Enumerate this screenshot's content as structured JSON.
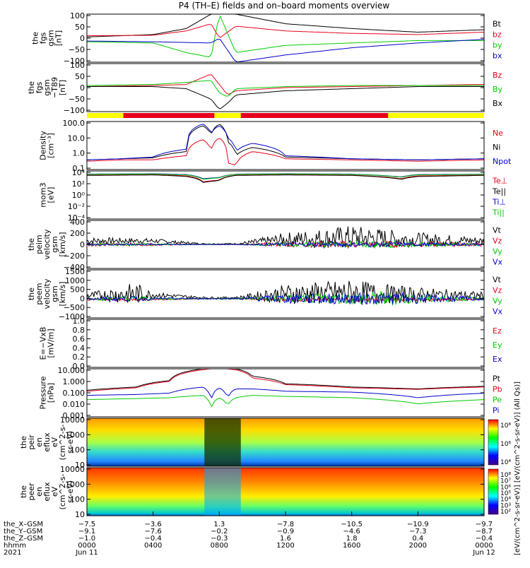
{
  "title": "P4 (TH–E) fields and on–board moments overview",
  "colors": {
    "black": "#000000",
    "red": "#e8001a",
    "green": "#00cc00",
    "blue": "#0000cc",
    "yellow": "#ffff00",
    "bar_red": "#e8001a"
  },
  "chart_data": [
    {
      "type": "line",
      "ylabel": [
        "the",
        "fgs",
        "gsm",
        "[nT]"
      ],
      "ylim": [
        -100,
        100
      ],
      "yticks": [
        "100",
        "50",
        "0",
        "−50",
        "−100"
      ],
      "legend": [
        "Bt",
        "bz",
        "by",
        "bx"
      ],
      "series": [
        {
          "name": "Bt",
          "x": [
            0,
            4,
            6,
            7.5,
            8,
            9,
            12,
            16,
            20,
            24
          ],
          "values": [
            5,
            15,
            40,
            100,
            100,
            100,
            60,
            40,
            25,
            35
          ]
        },
        {
          "name": "bz",
          "x": [
            0,
            4,
            6,
            7.5,
            8,
            9,
            12,
            16,
            20,
            24
          ],
          "values": [
            10,
            12,
            30,
            60,
            0,
            50,
            30,
            20,
            15,
            25
          ]
        },
        {
          "name": "by",
          "x": [
            0,
            4,
            6,
            7.5,
            8,
            9,
            12,
            16,
            20,
            24
          ],
          "values": [
            -15,
            -20,
            -60,
            -80,
            100,
            -60,
            -30,
            -20,
            -10,
            -10
          ]
        },
        {
          "name": "bx",
          "x": [
            0,
            4,
            6,
            7.5,
            8,
            9,
            12,
            16,
            20,
            24
          ],
          "values": [
            -12,
            -15,
            -18,
            -20,
            0,
            -100,
            -70,
            -40,
            -20,
            -5
          ]
        }
      ]
    },
    {
      "type": "line",
      "ylabel": [
        "the",
        "fgs",
        "gsm",
        "−T89",
        "[nT]"
      ],
      "ylim": [
        -120,
        110
      ],
      "yticks": [
        "100",
        "50",
        "0",
        "−50",
        "−100"
      ],
      "legend": [
        "Bz",
        "By",
        "Bx"
      ],
      "series": [
        {
          "name": "Bz",
          "x": [
            0,
            4,
            6,
            7.5,
            8,
            8.5,
            9,
            12,
            16,
            20,
            24
          ],
          "values": [
            0,
            5,
            10,
            60,
            10,
            -40,
            -20,
            -5,
            0,
            5,
            10
          ]
        },
        {
          "name": "By",
          "x": [
            0,
            4,
            6,
            7.5,
            8,
            8.5,
            9,
            12,
            16,
            20,
            24
          ],
          "values": [
            5,
            10,
            20,
            30,
            -30,
            -50,
            -10,
            0,
            5,
            5,
            5
          ]
        },
        {
          "name": "Bx",
          "x": [
            0,
            4,
            6,
            7.5,
            8,
            8.5,
            9,
            12,
            16,
            20,
            24
          ],
          "values": [
            0,
            0,
            -10,
            -60,
            -110,
            -80,
            -40,
            -20,
            -10,
            0,
            0
          ]
        }
      ]
    },
    {
      "type": "line",
      "log": true,
      "ylabel": [
        "Density",
        "[cm⁻³]"
      ],
      "ylim": [
        0.1,
        300
      ],
      "yticks": [
        "100.0",
        "10.0",
        "1.0",
        "0.1"
      ],
      "legend": [
        "Ne",
        "Ni",
        "Npot"
      ],
      "series": [
        {
          "name": "Ne",
          "x": [
            0,
            2,
            4,
            6,
            7,
            7.5,
            8,
            8.5,
            9,
            10,
            12,
            16,
            20,
            24
          ],
          "values": [
            0.4,
            0.5,
            0.5,
            1.0,
            15,
            2,
            20,
            0.3,
            0.2,
            2,
            0.6,
            0.5,
            0.4,
            0.5
          ]
        },
        {
          "name": "Ni",
          "x": [
            0,
            2,
            4,
            6,
            7,
            7.5,
            8,
            8.5,
            9,
            10,
            12,
            16,
            20,
            24
          ],
          "values": [
            0.5,
            0.6,
            0.7,
            2,
            150,
            30,
            200,
            10,
            1,
            4,
            0.8,
            0.6,
            0.5,
            0.6
          ]
        },
        {
          "name": "Npot",
          "x": [
            0,
            2,
            4,
            6,
            7,
            7.5,
            8,
            8.5,
            9,
            10,
            12,
            16,
            20,
            24
          ],
          "values": [
            0.5,
            0.6,
            0.8,
            3,
            200,
            40,
            150,
            20,
            2,
            8,
            1.0,
            0.6,
            0.5,
            0.6
          ]
        }
      ]
    },
    {
      "type": "line",
      "log": true,
      "ylabel": [
        "mom3",
        "[eV]"
      ],
      "ylim": [
        0.0001,
        10000
      ],
      "yticks": [
        "10⁴",
        "10²",
        "10⁰",
        "10⁻²",
        "10⁻⁴"
      ],
      "legend": [
        "Te⊥",
        "Te||",
        "Ti⊥",
        "Ti||"
      ],
      "series": [
        {
          "name": "Te⊥",
          "x": [
            0,
            4,
            6,
            7,
            8,
            9,
            12,
            16,
            19,
            20,
            24
          ],
          "values": [
            2000,
            2500,
            1500,
            150,
            300,
            2000,
            2500,
            2000,
            500,
            1500,
            2000
          ]
        },
        {
          "name": "Te||",
          "x": [
            0,
            4,
            6,
            7,
            8,
            9,
            12,
            16,
            19,
            20,
            24
          ],
          "values": [
            1800,
            2200,
            1200,
            120,
            250,
            1800,
            2200,
            1800,
            400,
            1200,
            1800
          ]
        },
        {
          "name": "Ti⊥",
          "x": [
            0,
            4,
            6,
            7,
            8,
            9,
            12,
            16,
            19,
            20,
            24
          ],
          "values": [
            3000,
            3500,
            2500,
            500,
            800,
            3000,
            3500,
            3000,
            1000,
            2500,
            3000
          ]
        },
        {
          "name": "Ti||",
          "x": [
            0,
            4,
            6,
            7,
            8,
            9,
            12,
            16,
            19,
            20,
            24
          ],
          "values": [
            2800,
            3200,
            2200,
            400,
            700,
            2800,
            3200,
            2800,
            900,
            2200,
            2800
          ]
        }
      ]
    },
    {
      "type": "line",
      "ylabel": [
        "the",
        "peim",
        "velocity",
        "gsm",
        "[km/s]"
      ],
      "ylim": [
        -400,
        400
      ],
      "yticks": [
        "400",
        "200",
        "0",
        "−200",
        "−400"
      ],
      "legend": [
        "Vt",
        "Vz",
        "Vy",
        "Vx"
      ],
      "noise": true,
      "series": [
        {
          "name": "Vt",
          "x": [
            0,
            4,
            7,
            9,
            12,
            16,
            18,
            20,
            24
          ],
          "values": [
            60,
            60,
            10,
            10,
            80,
            120,
            100,
            80,
            60
          ],
          "amp": [
            60,
            40,
            10,
            10,
            120,
            200,
            160,
            120,
            60
          ]
        },
        {
          "name": "Vz",
          "x": [
            0,
            4,
            7,
            9,
            12,
            16,
            18,
            20,
            24
          ],
          "values": [
            0,
            0,
            0,
            0,
            0,
            0,
            0,
            0,
            0
          ],
          "amp": [
            30,
            20,
            5,
            5,
            40,
            60,
            50,
            40,
            30
          ]
        },
        {
          "name": "Vy",
          "x": [
            0,
            4,
            7,
            9,
            12,
            16,
            18,
            20,
            24
          ],
          "values": [
            0,
            0,
            0,
            0,
            0,
            0,
            0,
            0,
            0
          ],
          "amp": [
            20,
            15,
            5,
            5,
            30,
            50,
            60,
            35,
            20
          ]
        },
        {
          "name": "Vx",
          "x": [
            0,
            4,
            7,
            9,
            12,
            16,
            18,
            20,
            24
          ],
          "values": [
            0,
            0,
            0,
            0,
            0,
            0,
            0,
            0,
            0
          ],
          "amp": [
            20,
            15,
            5,
            5,
            30,
            40,
            40,
            30,
            20
          ]
        }
      ]
    },
    {
      "type": "line",
      "ylabel": [
        "the",
        "peem",
        "velocity",
        "gsm",
        "[km/s]"
      ],
      "ylim": [
        -1000,
        1500
      ],
      "yticks": [
        "1500",
        "1000",
        "500",
        "0",
        "−500",
        "−1000"
      ],
      "legend": [
        "Vt",
        "Vz",
        "Vy",
        "Vx"
      ],
      "noise": true,
      "series": [
        {
          "name": "Vt",
          "x": [
            0,
            3,
            4,
            7,
            9,
            12,
            16,
            18,
            20,
            24
          ],
          "values": [
            150,
            250,
            200,
            50,
            50,
            250,
            300,
            250,
            200,
            150
          ],
          "amp": [
            150,
            600,
            150,
            50,
            50,
            500,
            700,
            500,
            400,
            200
          ]
        },
        {
          "name": "Vz",
          "x": [
            0,
            3,
            4,
            7,
            9,
            12,
            16,
            18,
            20,
            24
          ],
          "values": [
            -50,
            -50,
            -50,
            0,
            0,
            -50,
            -50,
            -50,
            -50,
            -50
          ],
          "amp": [
            50,
            80,
            50,
            20,
            20,
            80,
            100,
            80,
            60,
            50
          ]
        },
        {
          "name": "Vy",
          "x": [
            0,
            3,
            4,
            7,
            9,
            12,
            16,
            18,
            20,
            24
          ],
          "values": [
            0,
            0,
            0,
            0,
            0,
            0,
            0,
            0,
            0,
            0
          ],
          "amp": [
            60,
            150,
            60,
            30,
            30,
            200,
            300,
            400,
            250,
            80
          ]
        },
        {
          "name": "Vx",
          "x": [
            0,
            3,
            4,
            7,
            9,
            12,
            16,
            18,
            20,
            24
          ],
          "values": [
            0,
            0,
            0,
            0,
            0,
            0,
            0,
            0,
            0,
            0
          ],
          "amp": [
            60,
            150,
            60,
            30,
            30,
            250,
            300,
            300,
            250,
            80
          ]
        }
      ]
    },
    {
      "type": "line",
      "ylabel": [
        "E=−VxB",
        "[mV/m]"
      ],
      "ylim": [
        0,
        1
      ],
      "yticks": [
        "1.0",
        "0.8",
        "0.6",
        "0.4",
        "0.2",
        "0.0"
      ],
      "legend": [
        "Ez",
        "Ey",
        "Ex"
      ],
      "series": []
    },
    {
      "type": "line",
      "log": true,
      "ylabel": [
        "Pressure",
        "[nPa]"
      ],
      "ylim": [
        0.0005,
        15
      ],
      "yticks": [
        "10.000",
        "1.000",
        "0.100",
        "0.010",
        "0.001"
      ],
      "legend": [
        "Pt",
        "Pb",
        "Pe",
        "Pi"
      ],
      "series": [
        {
          "name": "Pt",
          "x": [
            0,
            3,
            5,
            7,
            7.5,
            8,
            8.5,
            9,
            10,
            12,
            16,
            20,
            24
          ],
          "values": [
            0.15,
            0.3,
            1.2,
            15,
            15,
            15,
            15,
            15,
            3,
            0.6,
            0.3,
            0.2,
            0.35
          ]
        },
        {
          "name": "Pb",
          "x": [
            0,
            3,
            5,
            7,
            7.5,
            8,
            8.5,
            9,
            10,
            12,
            16,
            20,
            24
          ],
          "values": [
            0.12,
            0.25,
            1.0,
            12,
            15,
            15,
            15,
            12,
            2,
            0.5,
            0.25,
            0.18,
            0.3
          ]
        },
        {
          "name": "Pe",
          "x": [
            0,
            3,
            5,
            7,
            7.5,
            8,
            8.5,
            9,
            10,
            12,
            16,
            20,
            24
          ],
          "values": [
            0.02,
            0.025,
            0.03,
            0.05,
            0.002,
            0.03,
            0.005,
            0.03,
            0.05,
            0.04,
            0.03,
            0.008,
            0.02
          ]
        },
        {
          "name": "Pi",
          "x": [
            0,
            3,
            5,
            7,
            7.5,
            8,
            8.5,
            9,
            10,
            12,
            16,
            20,
            24
          ],
          "values": [
            0.05,
            0.06,
            0.08,
            0.3,
            0.01,
            0.25,
            0.02,
            0.2,
            0.2,
            0.12,
            0.1,
            0.03,
            0.08
          ]
        }
      ]
    },
    {
      "type": "heatmap",
      "ylabel": [
        "the",
        "peir",
        "en",
        "eflux",
        "eV",
        "(cm^2-s-",
        "sr-eV)"
      ],
      "ylim": [
        5,
        25000
      ],
      "yticks": [
        "10000",
        "1000",
        "100",
        "10"
      ],
      "colorbar_ticks": [
        "10⁸",
        "10⁶",
        "10⁴"
      ]
    },
    {
      "type": "heatmap",
      "ylabel": [
        "the",
        "peer",
        "en",
        "eflux",
        "eV",
        "(cm^2-s-",
        "sr-eV)"
      ],
      "ylim": [
        5,
        25000
      ],
      "yticks": [
        "10000",
        "1000",
        "100",
        "10"
      ],
      "colorbar_ticks": [
        "10⁸",
        "10⁷",
        "10⁶",
        "10⁵",
        "10⁴",
        "10³",
        "10²"
      ]
    }
  ],
  "colorbar_label": "[eV/(cm^2-s-sr-eV)] [eV/(cm^2-s-sr-eV)] (All Qs)]",
  "xaxis": {
    "rows": [
      {
        "label": "the_X–GSM",
        "values": [
          "−7.5",
          "−3.6",
          "1.3",
          "−7.8",
          "−10.5",
          "−10.9",
          "−9.7"
        ]
      },
      {
        "label": "the_Y–GSM",
        "values": [
          "−9.1",
          "−7.6",
          "−0.2",
          "−0.9",
          "−4.6",
          "−7.3",
          "−8.7"
        ]
      },
      {
        "label": "the_Z–GSM",
        "values": [
          "−1.0",
          "−0.4",
          "−0.3",
          "1.6",
          "1.8",
          "0.4",
          "−0.4"
        ]
      },
      {
        "label": "hhmm",
        "values": [
          "0000",
          "0400",
          "0800",
          "1200",
          "1600",
          "2000",
          "0000"
        ]
      },
      {
        "label": "2021",
        "values": [
          "Jun 11",
          "",
          "",
          "",
          "",
          "",
          "Jun 12"
        ]
      }
    ]
  }
}
